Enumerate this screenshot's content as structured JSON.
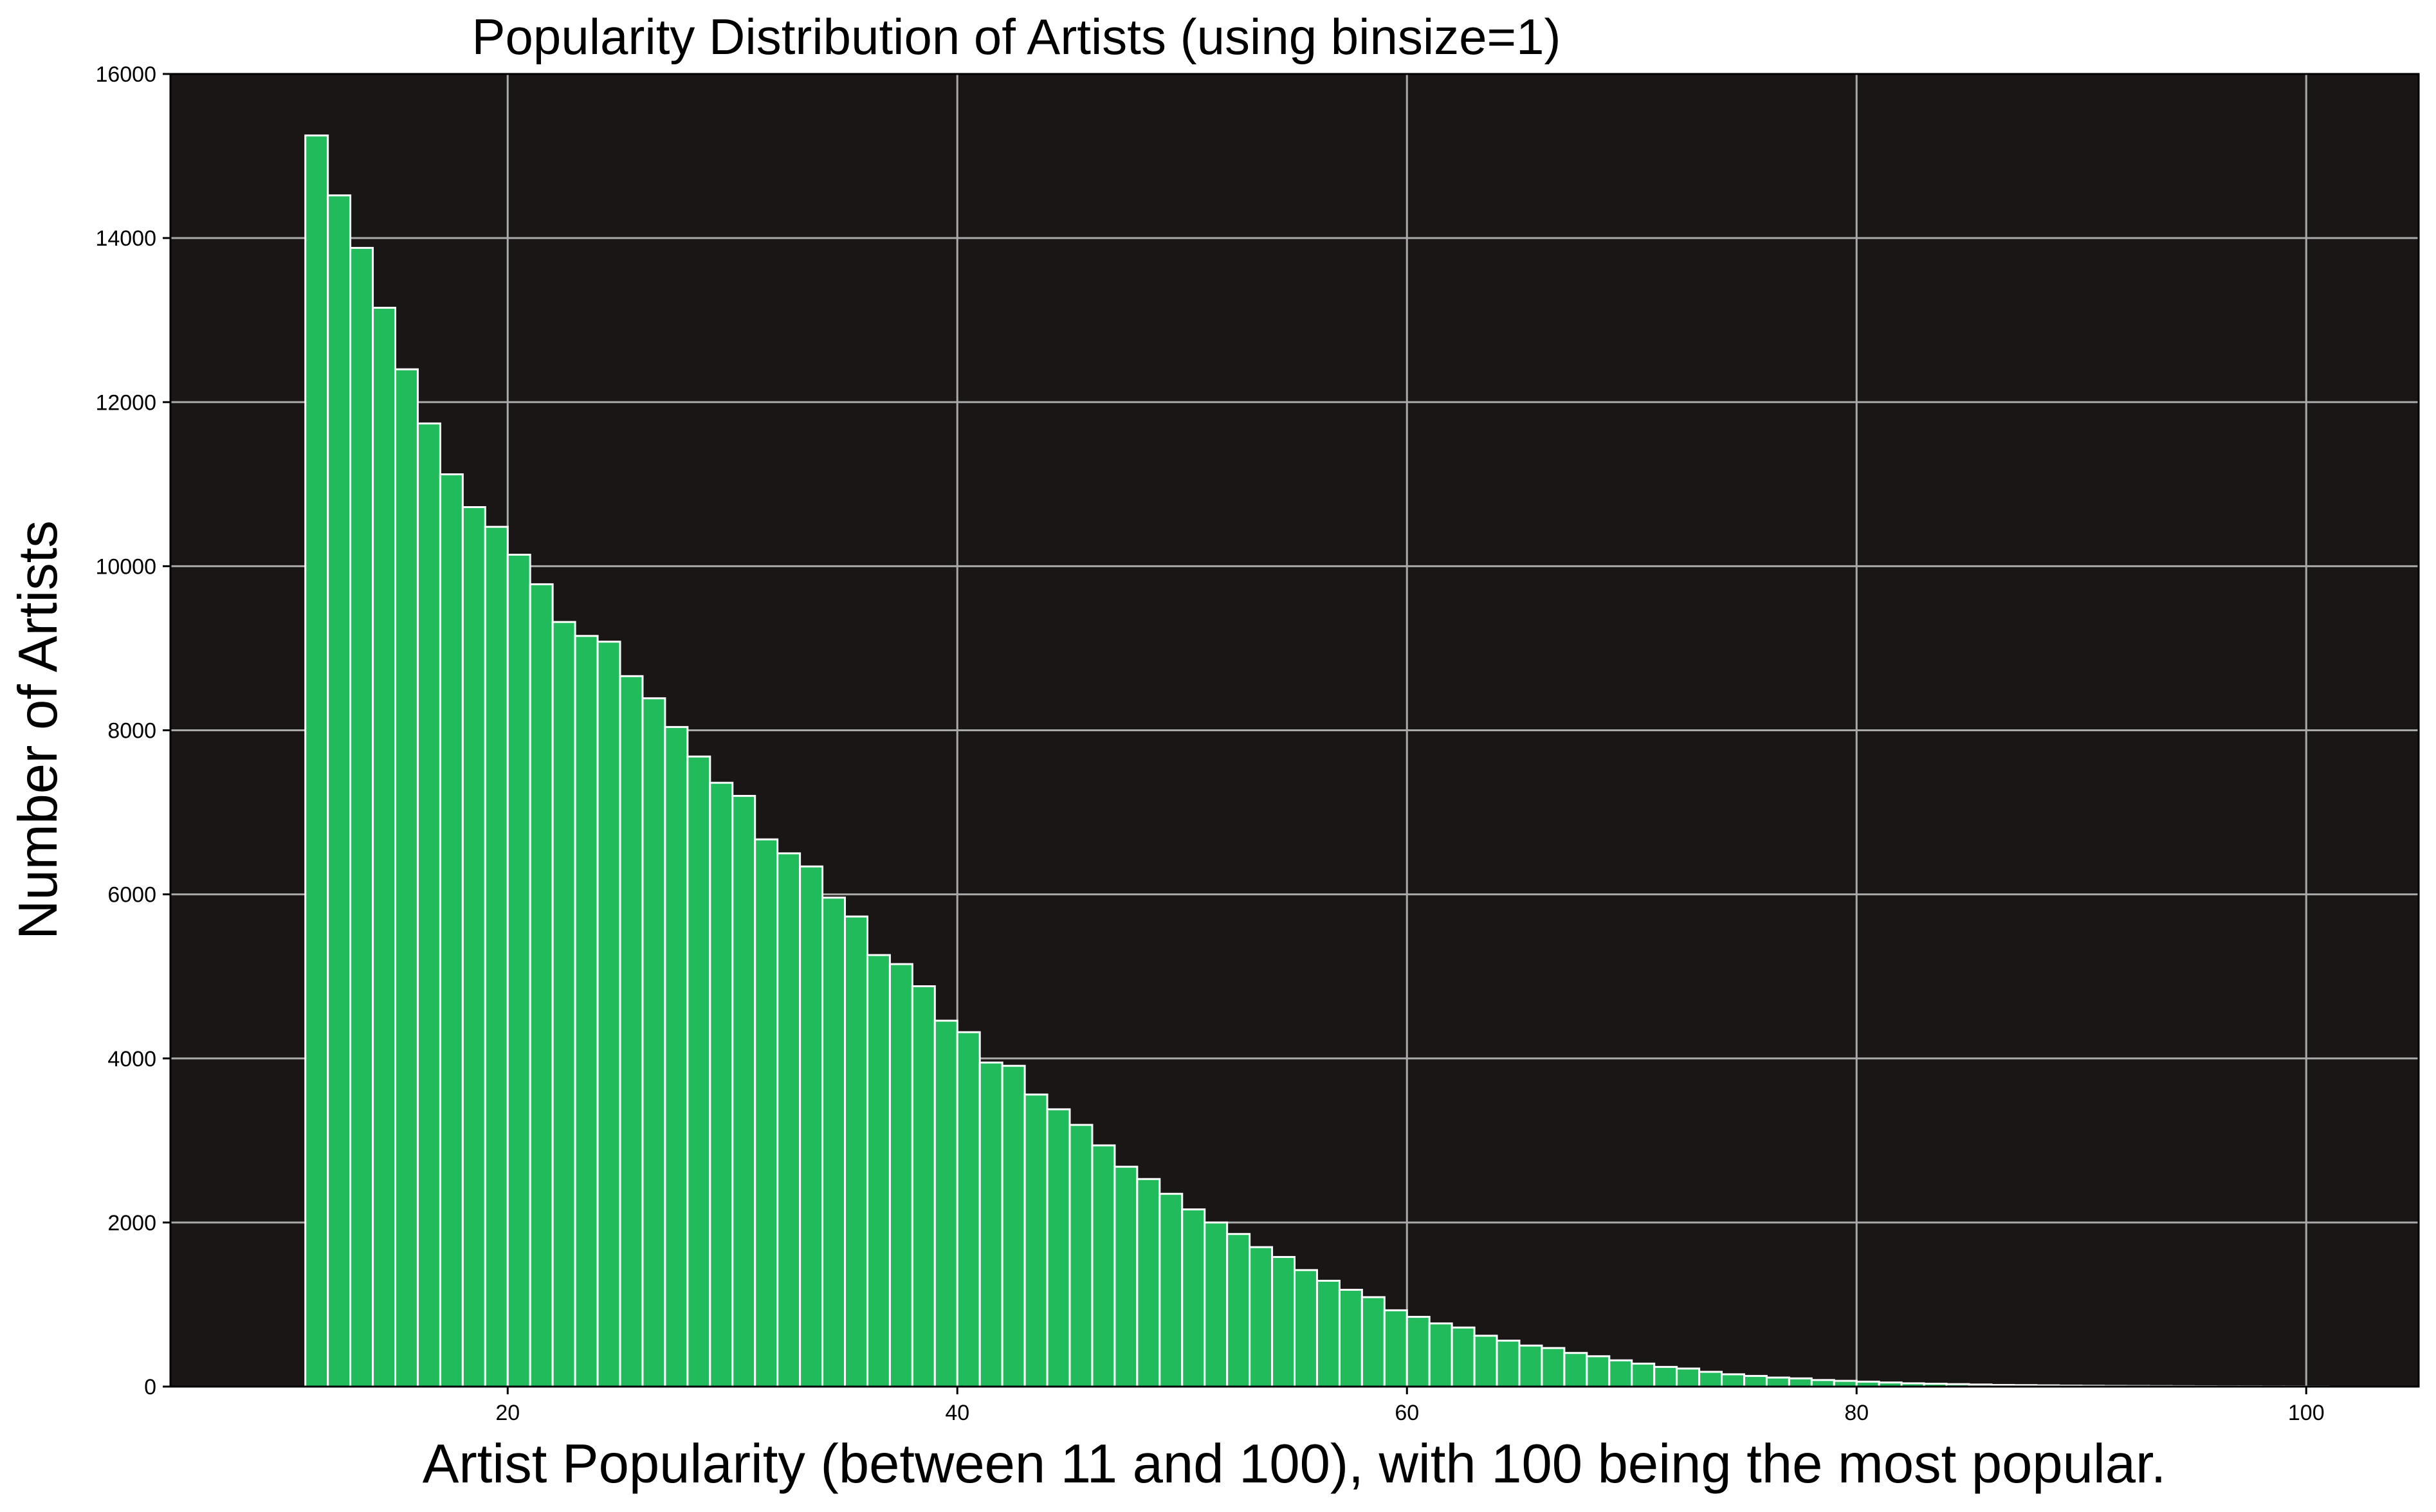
{
  "chart_data": {
    "type": "bar",
    "subtype": "histogram",
    "title": "Popularity Distribution of Artists (using binsize=1)",
    "xlabel": "Artist Popularity (between 11 and 100), with 100 being the most popular.",
    "ylabel": "Number of Artists",
    "xlim": [
      5,
      105
    ],
    "ylim": [
      0,
      16000
    ],
    "xticks": [
      20,
      40,
      60,
      80,
      100
    ],
    "yticks": [
      0,
      2000,
      4000,
      6000,
      8000,
      10000,
      12000,
      14000,
      16000
    ],
    "grid": true,
    "bin_width": 1,
    "bin_start": 11,
    "values": [
      15250,
      14520,
      13880,
      13150,
      12400,
      11740,
      11120,
      10720,
      10480,
      10140,
      9780,
      9320,
      9150,
      9080,
      8660,
      8390,
      8040,
      7680,
      7360,
      7200,
      6670,
      6500,
      6340,
      5960,
      5730,
      5260,
      5150,
      4880,
      4460,
      4320,
      3950,
      3910,
      3560,
      3380,
      3190,
      2940,
      2680,
      2530,
      2350,
      2160,
      2000,
      1860,
      1700,
      1580,
      1420,
      1290,
      1180,
      1090,
      930,
      850,
      770,
      720,
      620,
      560,
      500,
      470,
      410,
      370,
      320,
      280,
      240,
      220,
      180,
      150,
      130,
      110,
      100,
      80,
      70,
      60,
      50,
      40,
      35,
      30,
      25,
      20,
      18,
      15,
      12,
      10,
      8,
      7,
      6,
      5,
      4,
      3,
      3,
      2,
      2,
      1
    ],
    "colors": {
      "bar_fill": "#21bb5b",
      "bar_edge": "#ffffff",
      "plot_background": "#1a1616",
      "grid": "#a9a9a9",
      "figure_background": "#ffffff"
    }
  }
}
